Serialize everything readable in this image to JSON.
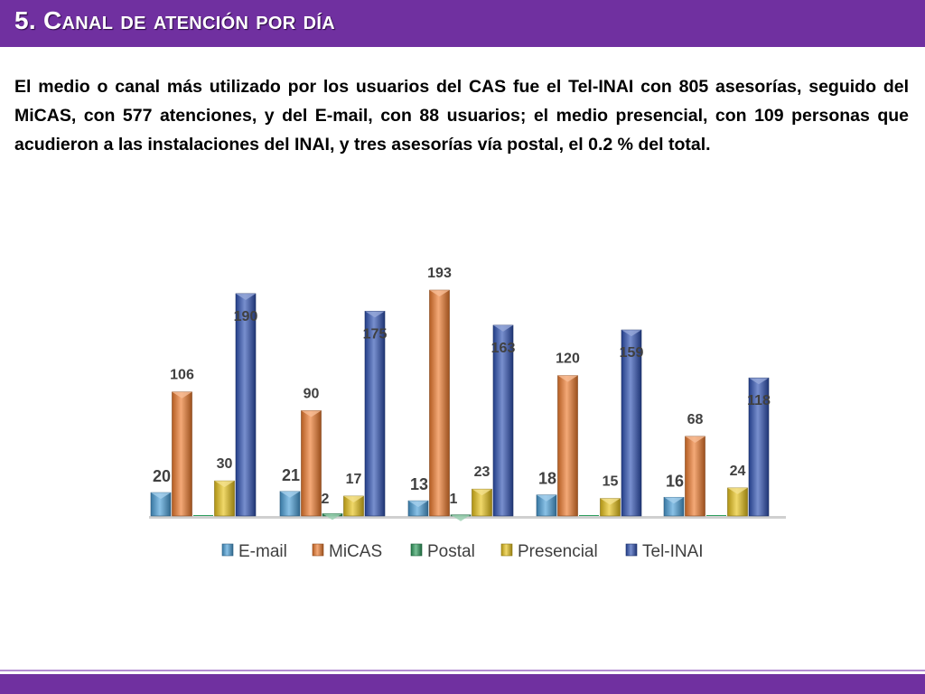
{
  "title": "5. Canal de atención por día",
  "paragraph": "El medio o canal más utilizado por los usuarios del CAS fue el Tel-INAI con 805 asesorías, seguido del MiCAS, con 577 atenciones, y del E-mail, con 88 usuarios; el medio presencial, con 109 personas que acudieron a las instalaciones del INAI, y tres asesorías vía postal, el 0.2 % del total.",
  "colors": {
    "header": "#7030a0",
    "email": "#4a9fd8",
    "micas": "#ee7b2d",
    "postal": "#2e9e5e",
    "presencial": "#e8c31a",
    "telinai": "#2f52b4"
  },
  "chart_data": {
    "type": "bar",
    "style": "3d-column",
    "categories": [
      "",
      "",
      "",
      "",
      ""
    ],
    "series": [
      {
        "name": "E-mail",
        "values": [
          20,
          21,
          13,
          18,
          16
        ]
      },
      {
        "name": "MiCAS",
        "values": [
          106,
          90,
          193,
          120,
          68
        ]
      },
      {
        "name": "Postal",
        "values": [
          0,
          2,
          1,
          0,
          0
        ]
      },
      {
        "name": "Presencial",
        "values": [
          30,
          17,
          23,
          15,
          24
        ]
      },
      {
        "name": "Tel-INAI",
        "values": [
          190,
          175,
          163,
          159,
          118
        ]
      }
    ],
    "data_labels": [
      [
        "20",
        "21",
        "13",
        "18",
        "16"
      ],
      [
        "106",
        "90",
        "193",
        "120",
        "68"
      ],
      [
        "",
        "2",
        "1",
        "",
        ""
      ],
      [
        "30",
        "17",
        "23",
        "15",
        "24"
      ],
      [
        "190",
        "175",
        "163",
        "159",
        "118"
      ]
    ],
    "ylim": [
      0,
      200
    ],
    "grid": false,
    "legend_position": "bottom"
  }
}
